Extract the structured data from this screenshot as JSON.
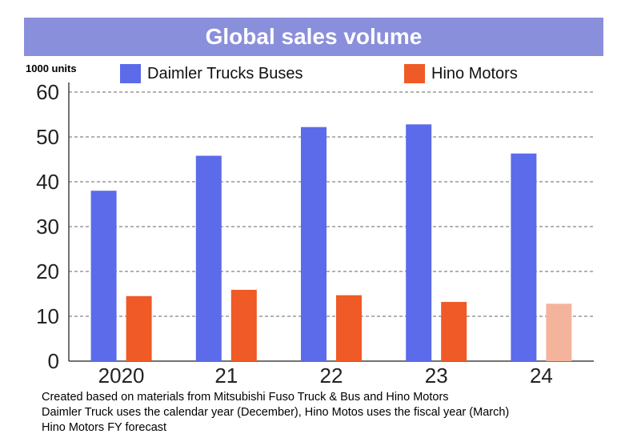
{
  "title": "Global sales volume",
  "unit_label": "1000 units",
  "legend": [
    {
      "label": "Daimler Trucks Buses",
      "color": "#5b6bea"
    },
    {
      "label": "Hino Motors",
      "color": "#ef5a26"
    }
  ],
  "notes": [
    "Created based on materials from Mitsubishi Fuso Truck & Bus and Hino Motors",
    "Daimler Truck uses the calendar year (December), Hino Motos uses the fiscal year (March)",
    "Hino Motors FY forecast"
  ],
  "chart_data": {
    "type": "bar",
    "categories": [
      "2020",
      "21",
      "22",
      "23",
      "24"
    ],
    "series": [
      {
        "name": "Daimler Trucks Buses",
        "values": [
          38,
          45.8,
          52.2,
          52.8,
          46.3
        ],
        "color": "#5b6bea"
      },
      {
        "name": "Hino Motors",
        "values": [
          14.5,
          15.9,
          14.7,
          13.2,
          12.8
        ],
        "color": "#ef5a26",
        "forecast_color": "#f4b49c",
        "forecast_index": 4
      }
    ],
    "ylim": [
      0,
      60
    ],
    "yticks": [
      0,
      10,
      20,
      30,
      40,
      50,
      60
    ],
    "grid": true,
    "legend_position": "top"
  }
}
